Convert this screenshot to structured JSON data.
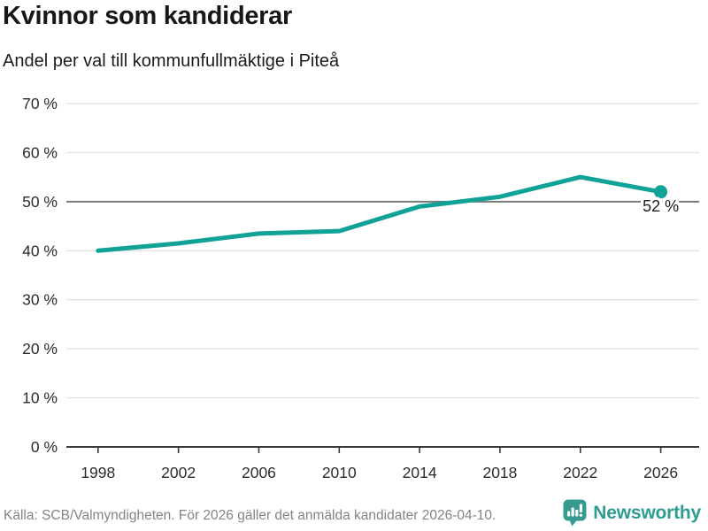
{
  "chart_data": {
    "type": "line",
    "title": "Kvinnor som kandiderar",
    "subtitle": "Andel per val till kommunfullmäktige i Piteå",
    "x": [
      1998,
      2002,
      2006,
      2010,
      2014,
      2018,
      2022,
      2026
    ],
    "values": [
      40,
      41.5,
      43.5,
      44,
      49,
      51,
      55,
      52
    ],
    "xticks": [
      1998,
      2002,
      2006,
      2010,
      2014,
      2018,
      2022,
      2026
    ],
    "yticks": [
      0,
      10,
      20,
      30,
      40,
      50,
      60,
      70
    ],
    "ytick_suffix": " %",
    "ylim": [
      0,
      70
    ],
    "grid": true,
    "legend": false,
    "highlight_gridline": 50,
    "end_label": "52 %",
    "end_marker": "dot"
  },
  "footer": {
    "source": "Källa: SCB/Valmyndigheten. För 2026 gäller det anmälda kandidater 2026-04-10.",
    "brand": "Newsworthy"
  },
  "colors": {
    "line": "#10a296",
    "grid_light": "#e1e1e1",
    "grid_dark": "#7a7a7a",
    "axis": "#3a3a3a",
    "tick_text": "#2b2b2b",
    "label_text": "#1d1d1d",
    "footer_text": "#848484",
    "brand": "#379a90"
  }
}
